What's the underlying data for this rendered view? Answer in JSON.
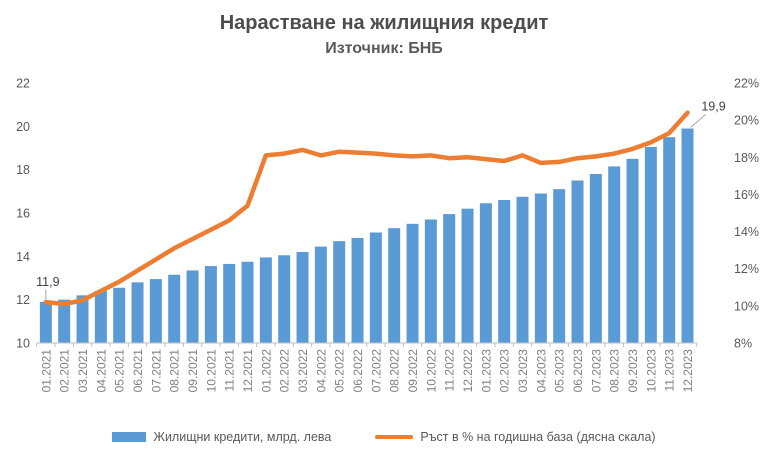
{
  "header": {
    "title": "Нарастване на жилищния кредит",
    "subtitle": "Източник: БНБ"
  },
  "chart_data": {
    "type": "combo-bar-line",
    "title": "Нарастване на жилищния кредит",
    "subtitle": "Източник: БНБ",
    "grid": false,
    "legend_position": "bottom",
    "text_color": "#595959",
    "axis_line_color": "#bfbfbf",
    "leader_line_color": "#a6a6a6",
    "categories": [
      "01.2021",
      "02.2021",
      "03.2021",
      "04.2021",
      "05.2021",
      "06.2021",
      "07.2021",
      "08.2021",
      "09.2021",
      "10.2021",
      "11.2021",
      "12.2021",
      "01.2022",
      "02.2022",
      "03.2022",
      "04.2022",
      "05.2022",
      "06.2022",
      "07.2022",
      "08.2022",
      "09.2022",
      "10.2022",
      "11.2022",
      "12.2022",
      "01.2023",
      "02.2023",
      "03.2023",
      "04.2023",
      "05.2023",
      "06.2023",
      "07.2023",
      "08.2023",
      "09.2023",
      "10.2023",
      "11.2023",
      "12.2023"
    ],
    "series": [
      {
        "name": "Жилищни кредити, млрд. лева",
        "type": "bar",
        "axis": "left",
        "color": "#5b9bd5",
        "values": [
          11.9,
          12.0,
          12.2,
          12.4,
          12.55,
          12.8,
          12.95,
          13.15,
          13.35,
          13.55,
          13.65,
          13.75,
          13.95,
          14.05,
          14.2,
          14.45,
          14.7,
          14.85,
          15.1,
          15.3,
          15.5,
          15.7,
          15.95,
          16.2,
          16.45,
          16.6,
          16.75,
          16.9,
          17.1,
          17.5,
          17.8,
          18.15,
          18.5,
          19.05,
          19.5,
          19.9
        ]
      },
      {
        "name": "Ръст в % на годишна база (дясна скала)",
        "type": "line",
        "axis": "right",
        "color": "#ed7d31",
        "values": [
          10.2,
          10.1,
          10.3,
          10.8,
          11.3,
          11.9,
          12.5,
          13.1,
          13.6,
          14.1,
          14.6,
          15.4,
          18.1,
          18.2,
          18.4,
          18.1,
          18.3,
          18.25,
          18.2,
          18.1,
          18.05,
          18.1,
          17.95,
          18.0,
          17.9,
          17.8,
          18.1,
          17.7,
          17.75,
          17.95,
          18.05,
          18.2,
          18.45,
          18.8,
          19.3,
          20.4
        ]
      }
    ],
    "left_axis": {
      "min": 10,
      "max": 22,
      "step": 2,
      "ticks": [
        "10",
        "12",
        "14",
        "16",
        "18",
        "20",
        "22"
      ]
    },
    "right_axis": {
      "min": 8,
      "max": 22,
      "step": 2,
      "ticks": [
        "8%",
        "10%",
        "12%",
        "14%",
        "16%",
        "18%",
        "20%",
        "22%"
      ]
    },
    "annotations": [
      {
        "text": "11,9",
        "series": 0,
        "index": 0
      },
      {
        "text": "19,9",
        "series": 0,
        "index": 35
      }
    ]
  },
  "legend": {
    "items": [
      {
        "label": "Жилищни кредити, млрд. лева",
        "swatch": "bar",
        "color": "#5b9bd5"
      },
      {
        "label": "Ръст в % на годишна база (дясна скала)",
        "swatch": "line",
        "color": "#ed7d31"
      }
    ]
  }
}
